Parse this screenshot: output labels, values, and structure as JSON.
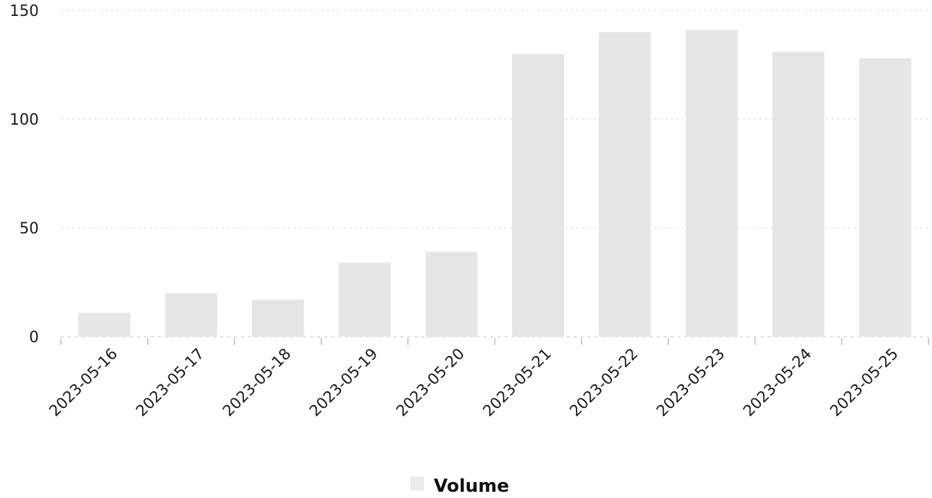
{
  "chart_data": {
    "type": "bar",
    "categories": [
      "2023-05-16",
      "2023-05-17",
      "2023-05-18",
      "2023-05-19",
      "2023-05-20",
      "2023-05-21",
      "2023-05-22",
      "2023-05-23",
      "2023-05-24",
      "2023-05-25"
    ],
    "series": [
      {
        "name": "Volume",
        "values": [
          11,
          20,
          17,
          34,
          39,
          130,
          140,
          141,
          131,
          128
        ],
        "color": "#e6e6e6"
      }
    ],
    "yticks": [
      "0",
      "50",
      "100",
      "150"
    ],
    "ylim": [
      0,
      150
    ],
    "grid": true,
    "legend": "bottom-center",
    "legend_label": "Volume",
    "legend_swatch_color": "#ececec",
    "text_color": "#1a1a1a"
  }
}
